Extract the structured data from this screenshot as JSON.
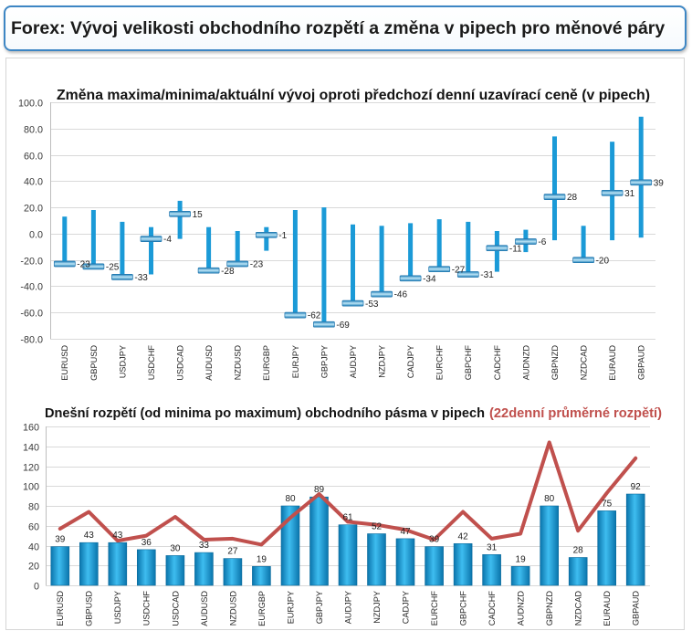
{
  "header": {
    "title": "Forex: Vývoj velikosti obchodního rozpětí a změna v pipech pro měnové páry"
  },
  "chart_data": [
    {
      "type": "bar",
      "title": "Změna maxima/minima/aktuální vývoj oproti předchozí denní uzavírací ceně (v pipech)",
      "categories": [
        "EURUSD",
        "GBPUSD",
        "USDJPY",
        "USDCHF",
        "USDCAD",
        "AUDUSD",
        "NZDUSD",
        "EURGBP",
        "EURJPY",
        "GBPJPY",
        "AUDJPY",
        "NZDJPY",
        "CADJPY",
        "EURCHF",
        "GBPCHF",
        "CADCHF",
        "AUDNZD",
        "GBPNZD",
        "NZDCAD",
        "EURAUD",
        "GBPAUD"
      ],
      "high": [
        13,
        18,
        9,
        5,
        25,
        5,
        2,
        5,
        18,
        20,
        7,
        6,
        8,
        11,
        9,
        2,
        3,
        74,
        6,
        70,
        89
      ],
      "low": [
        -24,
        -25,
        -33,
        -31,
        -4,
        -28,
        -23,
        -13,
        -62,
        -69,
        -53,
        -46,
        -34,
        -27,
        -31,
        -29,
        -14,
        -5,
        -20,
        -5,
        -3
      ],
      "current": [
        -23,
        -25,
        -33,
        -4,
        15,
        -28,
        -23,
        -1,
        -62,
        -69,
        -53,
        -46,
        -34,
        -27,
        -31,
        -11,
        -6,
        28,
        -20,
        31,
        39
      ],
      "ylim": [
        -80,
        100
      ],
      "yticks": [
        "100.0",
        "80.0",
        "60.0",
        "40.0",
        "20.0",
        "0.0",
        "-20.0",
        "-40.0",
        "-60.0",
        "-80.0"
      ],
      "grid": true,
      "colors": {
        "bar": "#1b9ad7"
      }
    },
    {
      "type": "bar",
      "title": "Dnešní rozpětí (od minima po maximum) obchodního pásma v pipech",
      "title_note": "(22denní průměrné rozpětí)",
      "title_note_color": "#c0504d",
      "categories": [
        "EURUSD",
        "GBPUSD",
        "USDJPY",
        "USDCHF",
        "USDCAD",
        "AUDUSD",
        "NZDUSD",
        "EURGBP",
        "EURJPY",
        "GBPJPY",
        "AUDJPY",
        "NZDJPY",
        "CADJPY",
        "EURCHF",
        "GBPCHF",
        "CADCHF",
        "AUDNZD",
        "GBPNZD",
        "NZDCAD",
        "EURAUD",
        "GBPAUD"
      ],
      "series": [
        {
          "type": "bar",
          "color": "#1b9ad7",
          "values": [
            39,
            43,
            43,
            36,
            30,
            33,
            27,
            19,
            80,
            89,
            61,
            52,
            47,
            39,
            42,
            31,
            19,
            80,
            28,
            75,
            92
          ]
        },
        {
          "type": "line",
          "color": "#c0504d",
          "values": [
            57,
            74,
            45,
            50,
            69,
            46,
            47,
            41,
            68,
            92,
            64,
            61,
            56,
            46,
            74,
            47,
            52,
            144,
            55,
            93,
            128
          ]
        }
      ],
      "ylim": [
        0,
        160
      ],
      "yticks": [
        "160",
        "140",
        "120",
        "100",
        "80",
        "60",
        "40",
        "20",
        "0"
      ],
      "grid": true
    }
  ]
}
